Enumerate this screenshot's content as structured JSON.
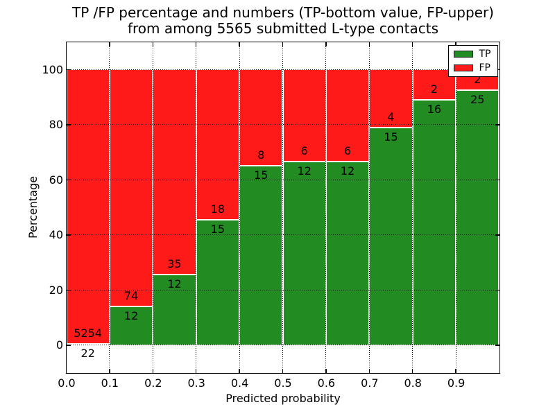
{
  "figure": {
    "title_line1": "TP /FP percentage and numbers (TP-bottom value, FP-upper)",
    "title_line2": "from among 5565 submitted L-type contacts"
  },
  "chart_data": {
    "type": "bar",
    "stacking": "percentage-normalized-to-100",
    "title": "TP /FP percentage and numbers (TP-bottom value, FP-upper) from among 5565 submitted L-type contacts",
    "xlabel": "Predicted probability",
    "ylabel": "Percentage",
    "total_contacts": 5565,
    "categories": [
      "0.0-0.1",
      "0.1-0.2",
      "0.2-0.3",
      "0.3-0.4",
      "0.4-0.5",
      "0.5-0.6",
      "0.6-0.7",
      "0.7-0.8",
      "0.8-0.9",
      "0.9-1.0"
    ],
    "series": [
      {
        "name": "TP",
        "color": "#228b22",
        "values": [
          22,
          12,
          12,
          15,
          15,
          12,
          12,
          15,
          16,
          25
        ]
      },
      {
        "name": "FP",
        "color": "#ff1a1a",
        "values": [
          5254,
          74,
          35,
          18,
          8,
          6,
          6,
          4,
          2,
          2
        ]
      }
    ],
    "tp_percent_heights": [
      0.4,
      14.0,
      25.5,
      45.5,
      65.2,
      66.7,
      66.7,
      78.9,
      88.9,
      92.6
    ],
    "xlim": [
      0.0,
      1.0
    ],
    "ylim": [
      -10,
      110
    ],
    "yticks": [
      0,
      20,
      40,
      60,
      80,
      100
    ],
    "xtick_labels": [
      "0.0",
      "0.1",
      "0.2",
      "0.3",
      "0.4",
      "0.5",
      "0.6",
      "0.7",
      "0.8",
      "0.9"
    ],
    "grid": "dotted black, both axes, drawn over bars",
    "bar_edge_color": "#ffffff",
    "legend": {
      "position": "upper right",
      "entries": [
        {
          "label": "TP",
          "color": "#228b22"
        },
        {
          "label": "FP",
          "color": "#ff1a1a"
        }
      ]
    }
  }
}
